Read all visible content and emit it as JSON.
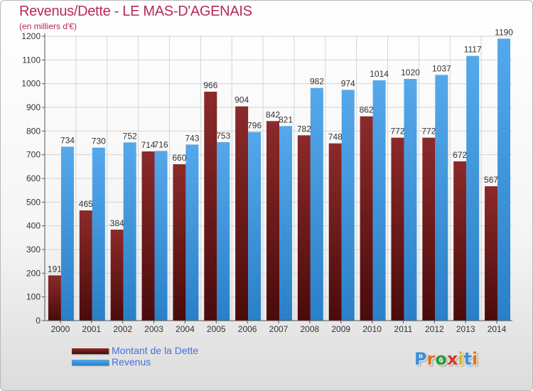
{
  "page": {
    "title": "Revenus/Dette - LE MAS-D'AGENAIS",
    "subtitle": "(en milliers d'€)",
    "logo_text": "Proxiti"
  },
  "chart_data": {
    "type": "bar",
    "title": "Revenus/Dette - LE MAS-D'AGENAIS",
    "subtitle": "(en milliers d'€)",
    "xlabel": "",
    "ylabel": "",
    "ylim": [
      0,
      1200
    ],
    "yticks": [
      0,
      100,
      200,
      300,
      400,
      500,
      600,
      700,
      800,
      900,
      1000,
      1100,
      1200
    ],
    "grid": true,
    "legend_position": "bottom-left",
    "categories": [
      "2000",
      "2001",
      "2002",
      "2003",
      "2004",
      "2005",
      "2006",
      "2007",
      "2008",
      "2009",
      "2010",
      "2011",
      "2012",
      "2013",
      "2014"
    ],
    "series": [
      {
        "name": "Montant de la Dette",
        "color": "#7a1e1e",
        "values": [
          191,
          465,
          384,
          714,
          660,
          966,
          904,
          842,
          782,
          748,
          862,
          772,
          772,
          672,
          567
        ]
      },
      {
        "name": "Revenus",
        "color": "#3c94dc",
        "values": [
          734,
          730,
          752,
          716,
          743,
          753,
          796,
          821,
          982,
          974,
          1014,
          1020,
          1037,
          1117,
          1190
        ]
      }
    ]
  }
}
